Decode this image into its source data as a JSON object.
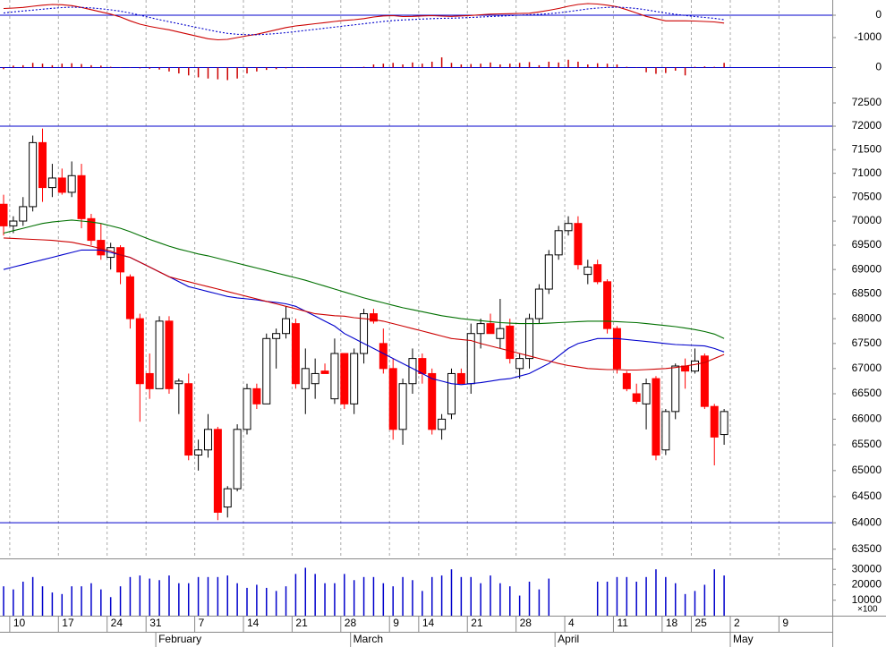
{
  "chart_data": {
    "type": "candlestick",
    "categories": [
      null,
      "10",
      null,
      null,
      null,
      null,
      "17",
      null,
      null,
      null,
      null,
      "24",
      null,
      null,
      null,
      "31",
      null,
      null,
      null,
      null,
      "7",
      null,
      null,
      null,
      null,
      "14",
      null,
      null,
      null,
      null,
      "21",
      null,
      null,
      null,
      null,
      "28",
      null,
      null,
      null,
      null,
      "9",
      null,
      null,
      "14",
      null,
      null,
      null,
      null,
      "21",
      null,
      null,
      null,
      null,
      "28",
      null,
      null,
      null,
      null,
      "4",
      null,
      null,
      null,
      null,
      "11",
      null,
      null,
      null,
      null,
      "18",
      null,
      null,
      "25",
      null,
      null,
      null,
      "2",
      null,
      null,
      null,
      null,
      "9",
      null,
      null,
      null,
      null,
      null
    ],
    "month_labels": [
      null,
      null,
      null,
      null,
      null,
      null,
      null,
      null,
      null,
      null,
      null,
      null,
      null,
      null,
      null,
      null,
      "February",
      null,
      null,
      null,
      null,
      null,
      null,
      null,
      null,
      null,
      null,
      null,
      null,
      null,
      null,
      null,
      null,
      null,
      null,
      null,
      "March",
      null,
      null,
      null,
      null,
      null,
      null,
      null,
      null,
      null,
      null,
      null,
      null,
      null,
      null,
      null,
      null,
      null,
      null,
      null,
      null,
      "April",
      null,
      null,
      null,
      null,
      null,
      null,
      null,
      null,
      null,
      null,
      null,
      null,
      null,
      null,
      null,
      null,
      null,
      "May",
      null,
      null,
      null,
      null,
      null,
      null,
      null,
      null,
      null,
      null
    ],
    "price": {
      "log_scale": true,
      "ylim": [
        63360,
        72925
      ],
      "yticks": [
        63500,
        64000,
        64500,
        65000,
        65500,
        66000,
        66500,
        67000,
        67500,
        68000,
        68500,
        69000,
        69500,
        70000,
        70500,
        71000,
        71500,
        72000,
        72500
      ],
      "hlines": [
        72000,
        64000
      ],
      "hline_color": "#0000cc",
      "grid": true,
      "up_color": "#ffffff",
      "down_color": "#ff0000",
      "open": [
        70350,
        69900,
        70000,
        70300,
        71650,
        70700,
        70900,
        70600,
        70950,
        70050,
        69600,
        69250,
        69450,
        68850,
        68000,
        66900,
        66600,
        67950,
        66700,
        66700,
        65300,
        65400,
        65800,
        64300,
        64650,
        65800,
        66600,
        66300,
        67600,
        67700,
        67900,
        66600,
        66700,
        66950,
        66400,
        67300,
        66300,
        67300,
        68100,
        67500,
        67000,
        65800,
        66700,
        67200,
        66900,
        65800,
        66100,
        66900,
        66700,
        67700,
        67900,
        67600,
        67850,
        67000,
        67200,
        68000,
        68600,
        69300,
        69800,
        69950,
        68900,
        69100,
        68750,
        67800,
        66900,
        66500,
        66300,
        66800,
        65400,
        66150,
        67050,
        66950,
        67250,
        66250,
        65700,
        null,
        null,
        null,
        null,
        null,
        null,
        null,
        null,
        null,
        null,
        null
      ],
      "high": [
        70550,
        70100,
        70500,
        71800,
        71950,
        71200,
        71100,
        71250,
        71200,
        70150,
        69950,
        69550,
        69500,
        68900,
        68100,
        67300,
        68050,
        68050,
        66800,
        66900,
        65600,
        66100,
        65850,
        64700,
        65900,
        66700,
        66700,
        67700,
        67800,
        68250,
        68000,
        67400,
        67200,
        67100,
        67600,
        67300,
        67400,
        68200,
        68200,
        67800,
        67200,
        66800,
        67400,
        67300,
        67000,
        66100,
        67000,
        67000,
        67900,
        68000,
        68100,
        68400,
        68000,
        67300,
        68100,
        68700,
        69400,
        69900,
        70100,
        70100,
        69200,
        69200,
        68800,
        67850,
        66950,
        66700,
        66800,
        66850,
        66200,
        67100,
        67200,
        67400,
        67300,
        66300,
        66200,
        null,
        null,
        null,
        null,
        null,
        null,
        null,
        null,
        null,
        null,
        null
      ],
      "low": [
        69700,
        69750,
        69900,
        70200,
        70400,
        70500,
        70550,
        70500,
        69850,
        69500,
        69200,
        69000,
        68700,
        67800,
        65950,
        66400,
        66600,
        66500,
        66100,
        65200,
        65000,
        65250,
        64050,
        64100,
        64600,
        65700,
        66200,
        66300,
        67000,
        67600,
        66600,
        66100,
        66400,
        66900,
        66300,
        66200,
        66100,
        67100,
        67900,
        66900,
        65600,
        65500,
        66500,
        66700,
        65700,
        65600,
        66000,
        66700,
        66500,
        67400,
        67700,
        67400,
        67100,
        66800,
        67000,
        67900,
        68500,
        69200,
        69700,
        69000,
        68700,
        68700,
        67700,
        66900,
        66550,
        66300,
        65800,
        65200,
        65300,
        66000,
        66600,
        66900,
        66200,
        65100,
        65500,
        null,
        null,
        null,
        null,
        null,
        null,
        null,
        null,
        null,
        null,
        null
      ],
      "close": [
        69900,
        70000,
        70300,
        71650,
        70700,
        70900,
        70600,
        70950,
        70050,
        69600,
        69300,
        69450,
        68950,
        68000,
        66700,
        66600,
        67950,
        66600,
        66750,
        65300,
        65400,
        65800,
        64200,
        64650,
        65800,
        66600,
        66300,
        67600,
        67700,
        68000,
        66700,
        67000,
        66900,
        66900,
        67300,
        66300,
        67300,
        68100,
        67950,
        67000,
        65800,
        66700,
        67200,
        66900,
        65800,
        66000,
        66900,
        66700,
        67700,
        67900,
        67700,
        67800,
        67200,
        67200,
        68000,
        68600,
        69300,
        69800,
        69950,
        69100,
        69050,
        68750,
        67800,
        67000,
        66600,
        66350,
        66700,
        65300,
        66150,
        67050,
        66950,
        67150,
        66250,
        65650,
        66150,
        null,
        null,
        null,
        null,
        null,
        null,
        null,
        null,
        null,
        null,
        null
      ],
      "series": [
        {
          "color": "#0000cc",
          "values": [
            69000,
            69050,
            69100,
            69150,
            69200,
            69250,
            69300,
            69350,
            69400,
            69400,
            69400,
            69350,
            69300,
            69250,
            69150,
            69050,
            68950,
            68850,
            68750,
            68650,
            68600,
            68550,
            68500,
            68450,
            68420,
            68400,
            68380,
            68350,
            68330,
            68300,
            68250,
            68150,
            68050,
            67950,
            67850,
            67700,
            67600,
            67500,
            67400,
            67300,
            67200,
            67100,
            67000,
            66900,
            66800,
            66750,
            66700,
            66680,
            66700,
            66720,
            66750,
            66780,
            66800,
            66850,
            66900,
            67000,
            67100,
            67250,
            67400,
            67500,
            67550,
            67600,
            67600,
            67600,
            67580,
            67560,
            67540,
            67520,
            67500,
            67480,
            67470,
            67460,
            67450,
            67400,
            67330,
            null,
            null,
            null,
            null,
            null,
            null,
            null,
            null,
            null,
            null,
            null
          ]
        },
        {
          "color": "#cc0000",
          "values": [
            69650,
            69640,
            69630,
            69620,
            69610,
            69600,
            69580,
            69560,
            69520,
            69480,
            69430,
            69380,
            69300,
            69250,
            69150,
            69050,
            68950,
            68850,
            68800,
            68750,
            68700,
            68650,
            68600,
            68550,
            68500,
            68450,
            68400,
            68350,
            68300,
            68250,
            68200,
            68150,
            68100,
            68080,
            68060,
            68050,
            68020,
            68000,
            67980,
            67950,
            67900,
            67850,
            67800,
            67750,
            67700,
            67650,
            67600,
            67580,
            67560,
            67500,
            67450,
            67400,
            67350,
            67300,
            67250,
            67200,
            67150,
            67100,
            67060,
            67030,
            67000,
            66990,
            66980,
            66980,
            66970,
            66970,
            66980,
            66990,
            67000,
            67020,
            67050,
            67080,
            67120,
            67200,
            67280,
            null,
            null,
            null,
            null,
            null,
            null,
            null,
            null,
            null,
            null,
            null
          ]
        },
        {
          "color": "#007000",
          "values": [
            69750,
            69800,
            69850,
            69900,
            69950,
            69980,
            70000,
            70020,
            70000,
            69980,
            69950,
            69900,
            69850,
            69780,
            69700,
            69620,
            69550,
            69480,
            69420,
            69370,
            69320,
            69280,
            69230,
            69180,
            69130,
            69080,
            69030,
            68980,
            68930,
            68880,
            68830,
            68780,
            68720,
            68660,
            68600,
            68540,
            68480,
            68420,
            68370,
            68320,
            68270,
            68220,
            68180,
            68140,
            68100,
            68060,
            68030,
            68000,
            67980,
            67960,
            67940,
            67920,
            67910,
            67900,
            67900,
            67900,
            67910,
            67920,
            67930,
            67940,
            67950,
            67950,
            67950,
            67940,
            67930,
            67920,
            67900,
            67880,
            67860,
            67840,
            67810,
            67780,
            67740,
            67690,
            67600,
            null,
            null,
            null,
            null,
            null,
            null,
            null,
            null,
            null,
            null,
            null
          ]
        }
      ]
    },
    "macd": {
      "type": "line",
      "ylim": [
        -1640,
        680
      ],
      "yticks": [
        -1000,
        0
      ],
      "zero_color": "#0000cc",
      "series": [
        {
          "color": "#cc0000",
          "values": [
            300,
            320,
            350,
            400,
            450,
            480,
            470,
            430,
            350,
            250,
            150,
            50,
            -80,
            -250,
            -400,
            -500,
            -580,
            -650,
            -750,
            -850,
            -950,
            -1050,
            -1100,
            -1080,
            -1000,
            -920,
            -850,
            -750,
            -650,
            -550,
            -480,
            -430,
            -380,
            -330,
            -280,
            -230,
            -200,
            -150,
            -80,
            -30,
            -20,
            -60,
            -50,
            -30,
            -20,
            -40,
            -50,
            -30,
            -10,
            20,
            50,
            60,
            70,
            80,
            90,
            150,
            220,
            300,
            400,
            480,
            520,
            500,
            450,
            380,
            250,
            100,
            -50,
            -150,
            -250,
            -250,
            -250,
            -260,
            -280,
            -300,
            -350,
            null,
            null,
            null,
            null,
            null,
            null,
            null,
            null,
            null,
            null,
            null
          ]
        },
        {
          "color": "#0000cc",
          "dashed": true,
          "values": [
            100,
            150,
            190,
            230,
            270,
            310,
            340,
            360,
            350,
            330,
            290,
            240,
            180,
            100,
            0,
            -100,
            -200,
            -290,
            -380,
            -470,
            -560,
            -650,
            -740,
            -810,
            -850,
            -870,
            -870,
            -850,
            -820,
            -780,
            -730,
            -680,
            -630,
            -580,
            -530,
            -480,
            -430,
            -380,
            -330,
            -280,
            -240,
            -210,
            -190,
            -170,
            -150,
            -140,
            -130,
            -120,
            -100,
            -80,
            -60,
            -40,
            -20,
            0,
            20,
            40,
            70,
            110,
            160,
            220,
            280,
            320,
            350,
            360,
            340,
            300,
            240,
            170,
            100,
            40,
            -10,
            -60,
            -100,
            -140,
            -200,
            null,
            null,
            null,
            null,
            null,
            null,
            null,
            null,
            null,
            null,
            null
          ]
        }
      ]
    },
    "histogram": {
      "type": "bar",
      "ylim": [
        -400,
        400
      ],
      "yticks": [
        0
      ],
      "color": "#cc0000",
      "zero_color": "#0000cc",
      "values": [
        -40,
        50,
        60,
        120,
        100,
        60,
        100,
        110,
        90,
        60,
        50,
        20,
        10,
        -10,
        -20,
        -30,
        -50,
        -100,
        -150,
        -200,
        -250,
        -280,
        -300,
        -320,
        -280,
        -150,
        -100,
        -60,
        -40,
        -20,
        -10,
        -10,
        0,
        0,
        0,
        10,
        10,
        20,
        80,
        100,
        120,
        80,
        130,
        100,
        150,
        260,
        120,
        80,
        90,
        100,
        130,
        80,
        100,
        120,
        140,
        60,
        150,
        130,
        200,
        150,
        80,
        110,
        100,
        80,
        20,
        -10,
        -120,
        -160,
        -140,
        -80,
        -200,
        20,
        30,
        20,
        120,
        null,
        null,
        null,
        null,
        null,
        null,
        null,
        null,
        null,
        null,
        null
      ]
    },
    "volume": {
      "type": "bar",
      "ylim": [
        0,
        36470
      ],
      "yticks": [
        10000,
        20000,
        30000
      ],
      "color": "#0000cc",
      "unit_label": "×100",
      "values": [
        19000,
        17000,
        22000,
        25000,
        19000,
        15000,
        14000,
        19000,
        19000,
        21000,
        17000,
        12000,
        19000,
        25000,
        26000,
        24000,
        23000,
        26000,
        21000,
        21000,
        25000,
        25000,
        25000,
        26000,
        21000,
        18000,
        20000,
        18000,
        16000,
        19000,
        27000,
        31000,
        27000,
        21000,
        21000,
        27000,
        23000,
        25000,
        25000,
        21000,
        19000,
        25000,
        23000,
        16000,
        25000,
        26000,
        30000,
        25000,
        25000,
        21000,
        26000,
        21000,
        19000,
        13000,
        22000,
        17000,
        24000,
        null,
        null,
        null,
        null,
        22000,
        22000,
        25000,
        25000,
        22000,
        25000,
        30000,
        25000,
        21000,
        14000,
        16000,
        20000,
        30000,
        26000,
        null,
        null,
        null,
        null,
        null,
        null,
        null,
        null,
        null,
        null,
        null
      ]
    }
  }
}
